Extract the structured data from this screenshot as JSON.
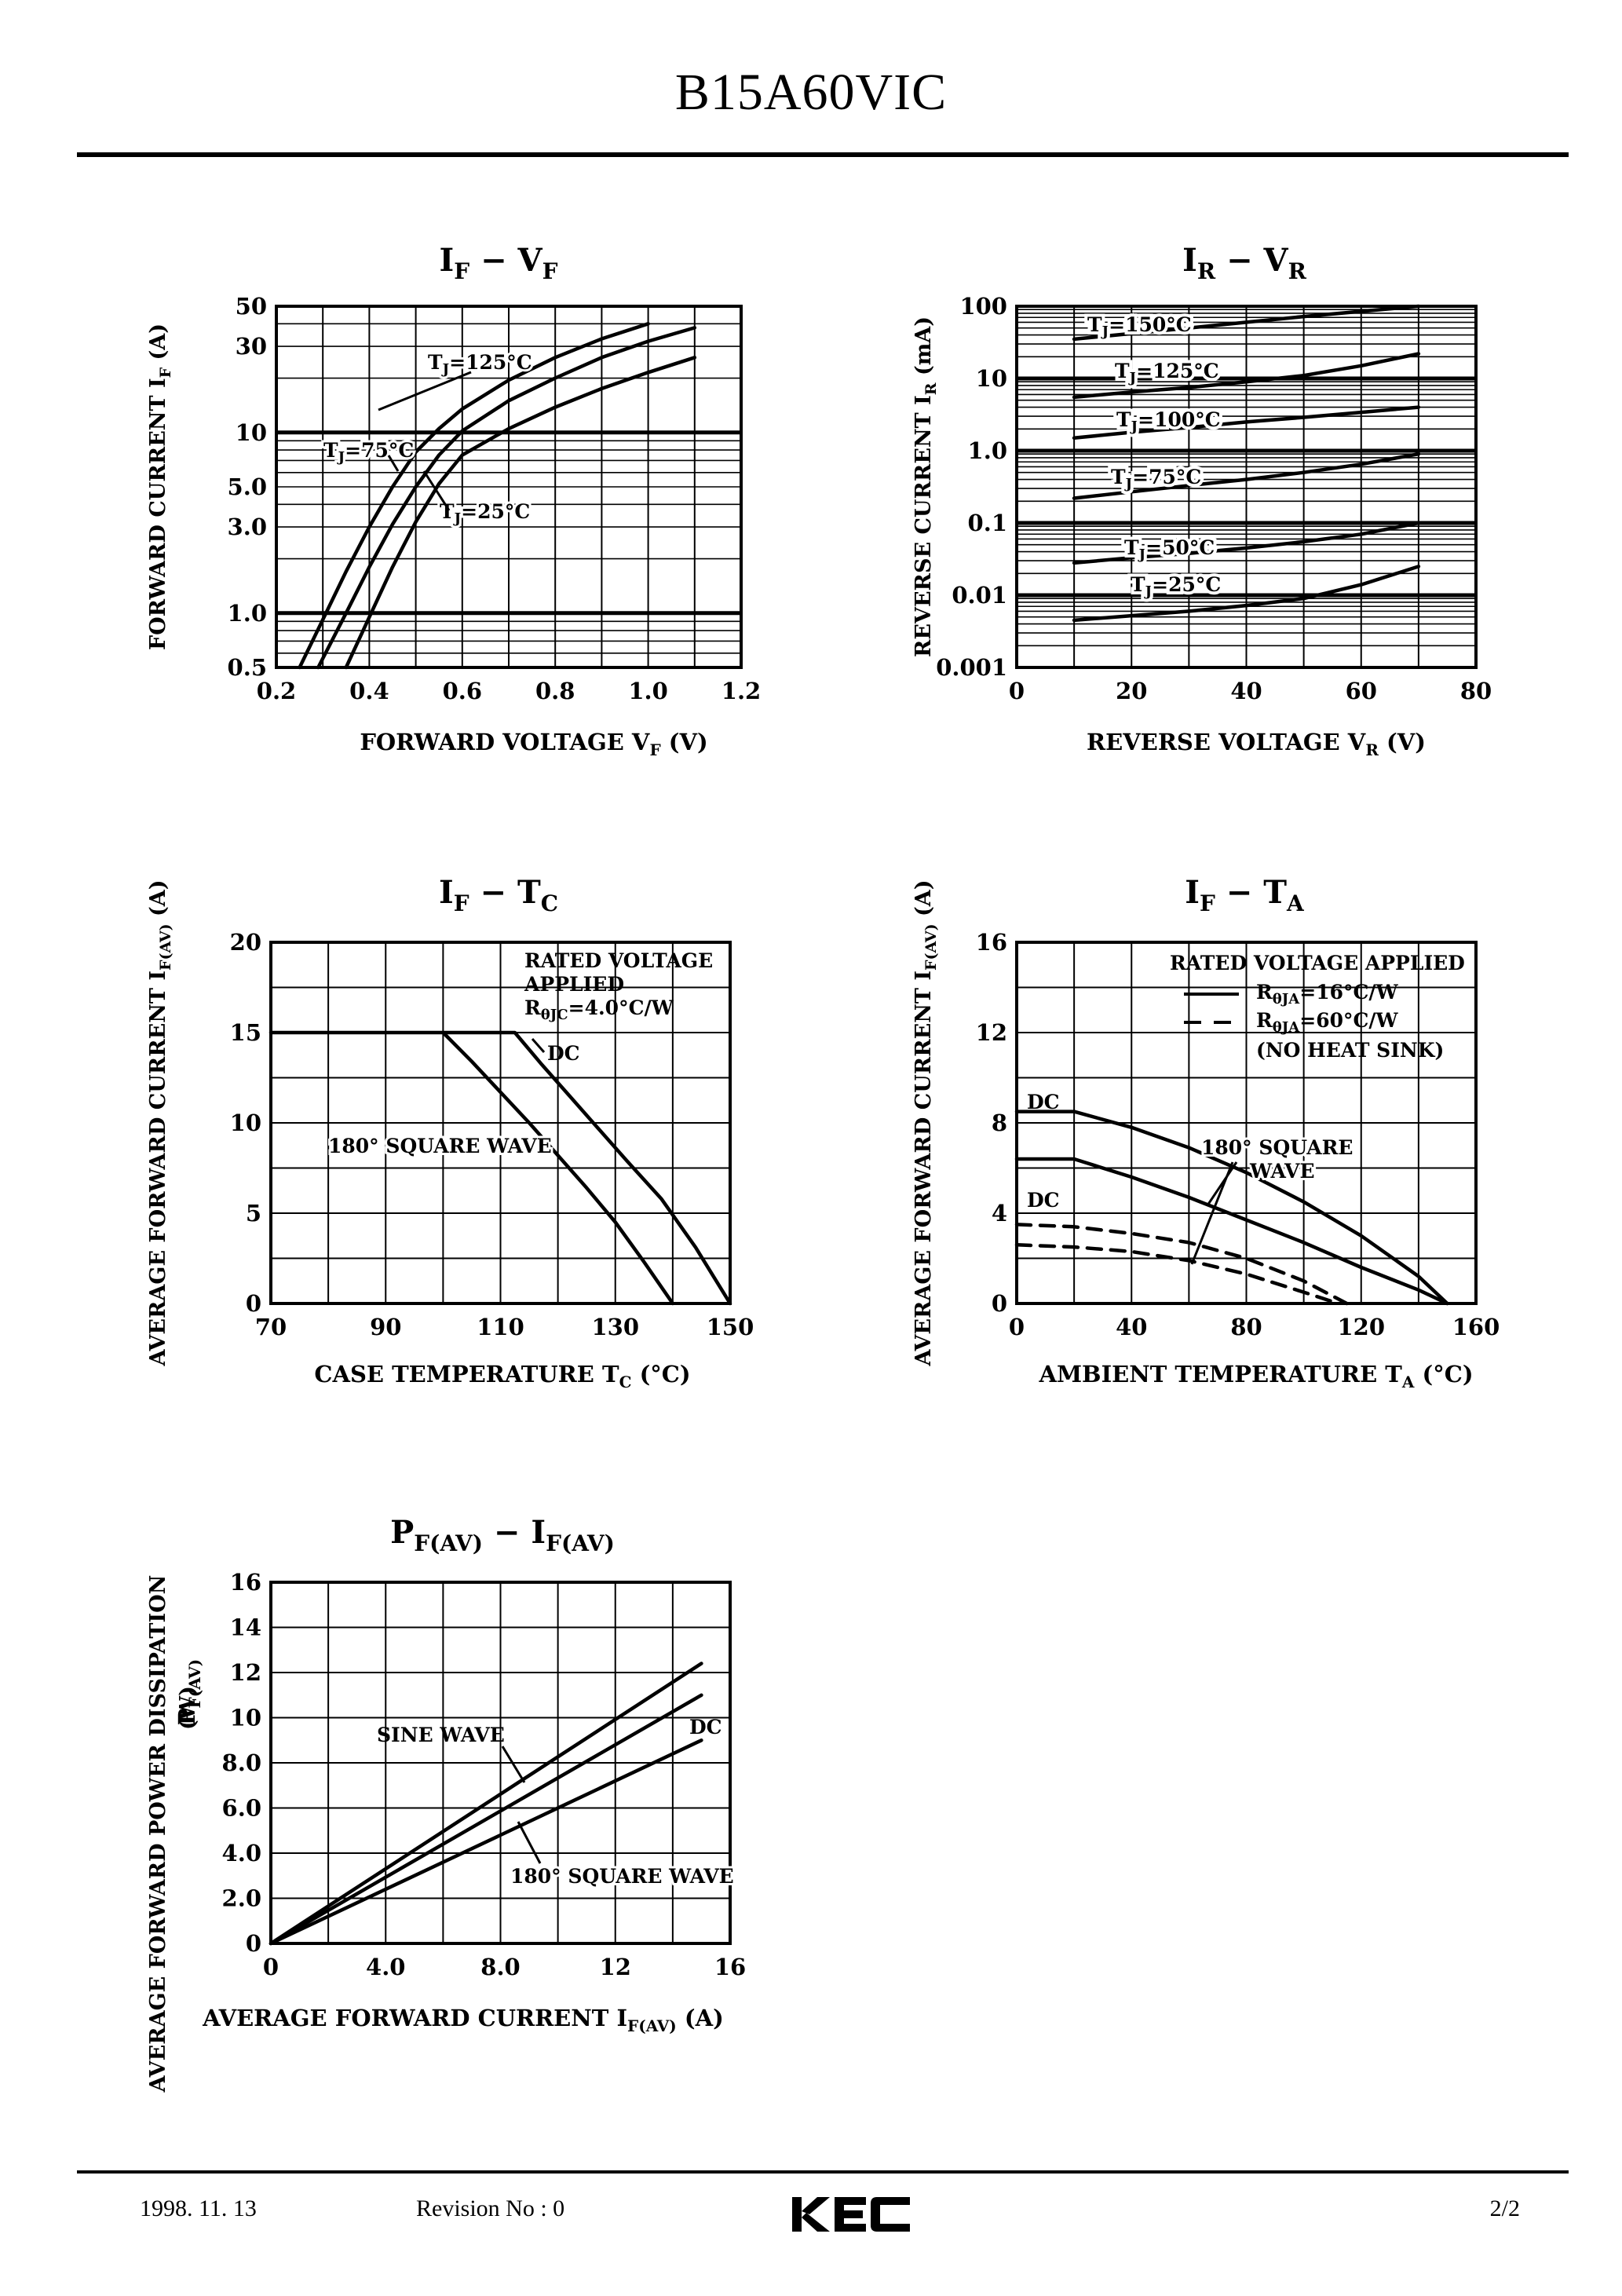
{
  "page": {
    "title": "B15A60VIC",
    "footer_date": "1998. 11. 13",
    "footer_revision": "Revision No : 0",
    "footer_logo": "KEC",
    "footer_page": "2/2"
  },
  "chart_data": [
    {
      "id": "if-vf",
      "type": "line",
      "title_main": "I",
      "title_sub": "F",
      "title_sep": " − ",
      "title_main2": "V",
      "title_sub2": "F",
      "xlabel": "FORWARD VOLTAGE V",
      "xlabel_sub": "F",
      "xlabel_unit": "(V)",
      "ylabel": "FORWARD CURRENT I",
      "ylabel_sub": "F",
      "ylabel_unit": "(A)",
      "xscale": "linear",
      "yscale": "log",
      "xlim": [
        0.2,
        1.2
      ],
      "ylim": [
        0.5,
        50
      ],
      "xticks": [
        "0.2",
        "0.4",
        "0.6",
        "0.8",
        "1.0",
        "1.2"
      ],
      "yticks": [
        {
          "v": 0.5,
          "label": "0.5"
        },
        {
          "v": 1,
          "label": "1.0"
        },
        {
          "v": 3,
          "label": "3.0"
        },
        {
          "v": 5,
          "label": "5.0"
        },
        {
          "v": 10,
          "label": "10"
        },
        {
          "v": 30,
          "label": "30"
        },
        {
          "v": 50,
          "label": "50"
        }
      ],
      "grid": true,
      "series": [
        {
          "name": "TJ=125°C",
          "label_main": "T",
          "label_sub": "J",
          "label_rest": "=125°C",
          "x": [
            0.25,
            0.3,
            0.35,
            0.4,
            0.45,
            0.5,
            0.55,
            0.6,
            0.7,
            0.8,
            0.9,
            1.0
          ],
          "y": [
            0.5,
            0.92,
            1.7,
            3.0,
            5.0,
            7.8,
            10.5,
            13.5,
            19.5,
            26,
            33,
            40
          ]
        },
        {
          "name": "TJ=75°C",
          "label_main": "T",
          "label_sub": "J",
          "label_rest": "=75°C",
          "x": [
            0.29,
            0.35,
            0.4,
            0.45,
            0.5,
            0.55,
            0.6,
            0.7,
            0.8,
            0.9,
            1.0,
            1.1
          ],
          "y": [
            0.5,
            1.0,
            1.8,
            3.1,
            5.0,
            7.5,
            10.2,
            15.0,
            20,
            26,
            32,
            38
          ]
        },
        {
          "name": "TJ=25°C",
          "label_main": "T",
          "label_sub": "J",
          "label_rest": "=25°C",
          "x": [
            0.35,
            0.4,
            0.45,
            0.5,
            0.55,
            0.6,
            0.7,
            0.8,
            0.9,
            1.0,
            1.1
          ],
          "y": [
            0.5,
            0.95,
            1.8,
            3.2,
            5.2,
            7.5,
            10.5,
            13.8,
            17.5,
            21.5,
            26
          ]
        }
      ]
    },
    {
      "id": "ir-vr",
      "type": "line",
      "title_main": "I",
      "title_sub": "R",
      "title_sep": " − ",
      "title_main2": "V",
      "title_sub2": "R",
      "xlabel": "REVERSE VOLTAGE V",
      "xlabel_sub": "R",
      "xlabel_unit": "(V)",
      "ylabel": "REVERSE CURRENT I",
      "ylabel_sub": "R",
      "ylabel_unit": "(mA)",
      "xscale": "linear",
      "yscale": "log",
      "xlim": [
        0,
        80
      ],
      "ylim": [
        0.001,
        100
      ],
      "xticks": [
        "0",
        "20",
        "40",
        "60",
        "80"
      ],
      "yticks": [
        {
          "v": 0.001,
          "label": "0.001"
        },
        {
          "v": 0.01,
          "label": "0.01"
        },
        {
          "v": 0.1,
          "label": "0.1"
        },
        {
          "v": 1,
          "label": "1.0"
        },
        {
          "v": 10,
          "label": "10"
        },
        {
          "v": 100,
          "label": "100"
        }
      ],
      "grid": true,
      "series": [
        {
          "name": "TJ=150°C",
          "label_main": "T",
          "label_sub": "J",
          "label_rest": "=150°C",
          "x": [
            10,
            20,
            30,
            40,
            50,
            60,
            70
          ],
          "y": [
            35,
            42,
            50,
            60,
            72,
            85,
            100
          ]
        },
        {
          "name": "TJ=125°C",
          "label_main": "T",
          "label_sub": "J",
          "label_rest": "=125°C",
          "x": [
            10,
            20,
            30,
            40,
            50,
            60,
            70
          ],
          "y": [
            5.5,
            6.5,
            7.5,
            9,
            11,
            15,
            22
          ]
        },
        {
          "name": "TJ=100°C",
          "label_main": "T",
          "label_sub": "J",
          "label_rest": "=100°C",
          "x": [
            10,
            20,
            30,
            40,
            50,
            60,
            70
          ],
          "y": [
            1.5,
            1.8,
            2.1,
            2.5,
            2.9,
            3.4,
            4.0
          ]
        },
        {
          "name": "TJ=75°C",
          "label_main": "T",
          "label_sub": "J",
          "label_rest": "=75°C",
          "x": [
            10,
            20,
            30,
            40,
            50,
            60,
            70
          ],
          "y": [
            0.22,
            0.27,
            0.33,
            0.4,
            0.5,
            0.65,
            0.9
          ]
        },
        {
          "name": "TJ=50°C",
          "label_main": "T",
          "label_sub": "J",
          "label_rest": "=50°C",
          "x": [
            10,
            20,
            30,
            40,
            50,
            60,
            70
          ],
          "y": [
            0.028,
            0.033,
            0.038,
            0.045,
            0.055,
            0.07,
            0.1
          ]
        },
        {
          "name": "TJ=25°C",
          "label_main": "T",
          "label_sub": "J",
          "label_rest": "=25°C",
          "x": [
            10,
            20,
            30,
            40,
            50,
            60,
            70
          ],
          "y": [
            0.0045,
            0.0052,
            0.006,
            0.0072,
            0.009,
            0.014,
            0.025
          ]
        }
      ]
    },
    {
      "id": "if-tc",
      "type": "line",
      "title_main": "I",
      "title_sub": "F",
      "title_sep": " − ",
      "title_main2": "T",
      "title_sub2": "C",
      "xlabel": "CASE TEMPERATURE T",
      "xlabel_sub": "C",
      "xlabel_unit": "(°C)",
      "ylabel": "AVERAGE FORWARD CURRENT I",
      "ylabel_sub": "F(AV)",
      "ylabel_unit": "(A)",
      "xscale": "linear",
      "yscale": "linear",
      "xlim": [
        70,
        150
      ],
      "ylim": [
        0,
        20
      ],
      "xticks": [
        "70",
        "90",
        "110",
        "130",
        "150"
      ],
      "yticks": [
        {
          "v": 0,
          "label": "0"
        },
        {
          "v": 5,
          "label": "5"
        },
        {
          "v": 10,
          "label": "10"
        },
        {
          "v": 15,
          "label": "15"
        },
        {
          "v": 20,
          "label": "20"
        }
      ],
      "grid": true,
      "note": [
        "RATED VOLTAGE",
        "APPLIED",
        "R",
        "θJC",
        "=4.0°C/W"
      ],
      "series": [
        {
          "name": "DC",
          "label": "DC",
          "x": [
            70,
            112.5,
            117,
            122,
            127,
            132,
            138,
            144,
            150
          ],
          "y": [
            15,
            15,
            13.3,
            11.5,
            9.7,
            7.9,
            5.8,
            3.1,
            0
          ]
        },
        {
          "name": "180° SQUARE WAVE",
          "label": "180° SQUARE WAVE",
          "x": [
            100,
            105,
            110,
            115,
            120,
            125,
            130,
            135,
            140
          ],
          "y": [
            15,
            13.4,
            11.7,
            10,
            8.2,
            6.4,
            4.5,
            2.3,
            0
          ]
        }
      ]
    },
    {
      "id": "if-ta",
      "type": "line",
      "title_main": "I",
      "title_sub": "F",
      "title_sep": " − ",
      "title_main2": "T",
      "title_sub2": "A",
      "xlabel": "AMBIENT TEMPERATURE T",
      "xlabel_sub": "A",
      "xlabel_unit": "(°C)",
      "ylabel": "AVERAGE FORWARD CURRENT I",
      "ylabel_sub": "F(AV)",
      "ylabel_unit": "(A)",
      "xscale": "linear",
      "yscale": "linear",
      "xlim": [
        0,
        160
      ],
      "ylim": [
        0,
        16
      ],
      "xticks": [
        "0",
        "40",
        "80",
        "120",
        "160"
      ],
      "yticks": [
        {
          "v": 0,
          "label": "0"
        },
        {
          "v": 4,
          "label": "4"
        },
        {
          "v": 8,
          "label": "8"
        },
        {
          "v": 12,
          "label": "12"
        },
        {
          "v": 16,
          "label": "16"
        }
      ],
      "grid": true,
      "legend_title": "RATED VOLTAGE APPLIED",
      "legend": [
        {
          "style": "solid",
          "main": "R",
          "sub": "θJA",
          "rest": "=16°C/W"
        },
        {
          "style": "dashed",
          "main": "R",
          "sub": "θJA",
          "rest": "=60°C/W"
        },
        {
          "style": "none",
          "main": "(NO HEAT SINK)",
          "sub": "",
          "rest": ""
        }
      ],
      "labels": {
        "dc_upper": "DC",
        "dc_lower": "DC",
        "square_1": "180° SQUARE",
        "square_2": "WAVE"
      },
      "series": [
        {
          "name": "DC Rθ=16°C/W",
          "style": "solid",
          "x": [
            0,
            20,
            40,
            60,
            80,
            100,
            120,
            140,
            150
          ],
          "y": [
            8.5,
            8.5,
            7.8,
            6.9,
            5.8,
            4.5,
            3.0,
            1.2,
            0
          ]
        },
        {
          "name": "180° SQUARE WAVE Rθ=16°C/W",
          "style": "solid",
          "x": [
            0,
            20,
            40,
            60,
            80,
            100,
            120,
            140,
            150
          ],
          "y": [
            6.4,
            6.4,
            5.6,
            4.7,
            3.7,
            2.7,
            1.6,
            0.6,
            0
          ]
        },
        {
          "name": "DC Rθ=60°C/W",
          "style": "dashed",
          "x": [
            0,
            20,
            40,
            60,
            80,
            100,
            115
          ],
          "y": [
            3.5,
            3.4,
            3.1,
            2.7,
            2.0,
            1.0,
            0
          ]
        },
        {
          "name": "180° SQUARE WAVE Rθ=60°C/W",
          "style": "dashed",
          "x": [
            0,
            20,
            40,
            60,
            80,
            100,
            112
          ],
          "y": [
            2.6,
            2.5,
            2.3,
            1.9,
            1.3,
            0.5,
            0
          ]
        }
      ]
    },
    {
      "id": "pf-if",
      "type": "line",
      "title_main": "P",
      "title_sub": "F(AV)",
      "title_sep": " − ",
      "title_main2": "I",
      "title_sub2": "F(AV)",
      "xlabel": "AVERAGE FORWARD CURRENT I",
      "xlabel_sub": "F(AV)",
      "xlabel_unit": "(A)",
      "ylabel": "AVERAGE FORWARD POWER DISSIPATION",
      "ylabel2_main": "P",
      "ylabel2_sub": "F(AV)",
      "ylabel_unit": "(W)",
      "xscale": "linear",
      "yscale": "linear",
      "xlim": [
        0,
        16
      ],
      "ylim": [
        0,
        16
      ],
      "xticks": [
        "0",
        "4.0",
        "8.0",
        "12",
        "16"
      ],
      "yticks": [
        {
          "v": 0,
          "label": "0"
        },
        {
          "v": 2,
          "label": "2.0"
        },
        {
          "v": 4,
          "label": "4.0"
        },
        {
          "v": 6,
          "label": "6.0"
        },
        {
          "v": 8,
          "label": "8.0"
        },
        {
          "v": 10,
          "label": "10"
        },
        {
          "v": 12,
          "label": "12"
        },
        {
          "v": 14,
          "label": "14"
        },
        {
          "v": 16,
          "label": "16"
        }
      ],
      "grid": true,
      "labels": {
        "sine": "SINE WAVE",
        "dc": "DC",
        "square": "180° SQUARE WAVE"
      },
      "series": [
        {
          "name": "180° SQUARE WAVE",
          "x": [
            0,
            15
          ],
          "y": [
            0,
            12.4
          ]
        },
        {
          "name": "SINE WAVE",
          "x": [
            0,
            15
          ],
          "y": [
            0,
            11.0
          ]
        },
        {
          "name": "DC",
          "x": [
            0,
            15
          ],
          "y": [
            0,
            9.0
          ]
        }
      ]
    }
  ]
}
